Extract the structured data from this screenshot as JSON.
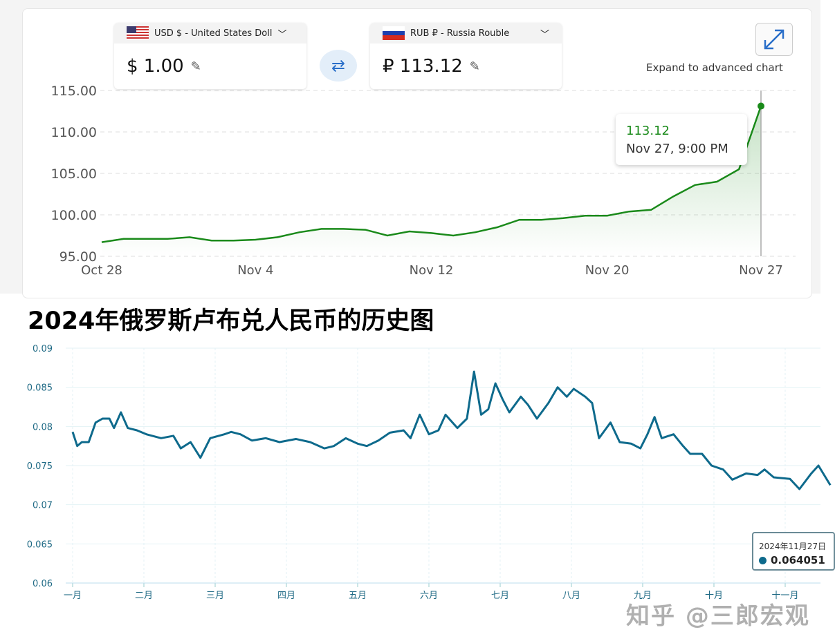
{
  "converter": {
    "from": {
      "label": "USD $ - United States Doll",
      "amount": "$ 1.00",
      "flag": "us-flag"
    },
    "to": {
      "label": "RUB ₽ - Russia Rouble",
      "amount": "₽  113.12",
      "flag": "ru-flag"
    },
    "expand_label": "Expand to advanced chart"
  },
  "colors": {
    "line1": "#1a8a1a",
    "line2": "#0e6a8c",
    "tooltip_value": "#1a8a1a"
  },
  "title2": "2024年俄罗斯卢布兑人民币的历史图",
  "watermark": "知乎 @三郎宏观",
  "chart_data": [
    {
      "type": "area",
      "xlabel": "",
      "ylabel": "",
      "ylim": [
        95,
        115
      ],
      "yticks": [
        "115.00",
        "110.00",
        "105.00",
        "100.00",
        "95.00"
      ],
      "xticks": [
        {
          "label": "Oct 28",
          "date": "Oct 28"
        },
        {
          "label": "Nov 4",
          "date": "Nov 4"
        },
        {
          "label": "Nov 12",
          "date": "Nov 12"
        },
        {
          "label": "Nov 20",
          "date": "Nov 20"
        },
        {
          "label": "Nov 27",
          "date": "Nov 27"
        }
      ],
      "x": [
        "Oct 28",
        "Oct 29",
        "Oct 30",
        "Oct 31",
        "Nov 1",
        "Nov 2",
        "Nov 3",
        "Nov 4",
        "Nov 5",
        "Nov 6",
        "Nov 7",
        "Nov 8",
        "Nov 9",
        "Nov 10",
        "Nov 11",
        "Nov 12",
        "Nov 13",
        "Nov 14",
        "Nov 15",
        "Nov 16",
        "Nov 17",
        "Nov 18",
        "Nov 19",
        "Nov 20",
        "Nov 21",
        "Nov 22",
        "Nov 23",
        "Nov 24",
        "Nov 25",
        "Nov 26",
        "Nov 27"
      ],
      "values": [
        96.7,
        97.1,
        97.1,
        97.1,
        97.3,
        96.9,
        96.9,
        97.0,
        97.3,
        97.9,
        98.3,
        98.3,
        98.2,
        97.5,
        98.0,
        97.8,
        97.5,
        97.9,
        98.5,
        99.4,
        99.4,
        99.6,
        99.9,
        99.9,
        100.4,
        100.6,
        102.2,
        103.6,
        104.0,
        105.5,
        113.12
      ],
      "tooltip": {
        "value": "113.12",
        "date": "Nov 27, 9:00 PM"
      },
      "grid": true
    },
    {
      "type": "line",
      "xlabel": "",
      "ylabel": "",
      "ylim": [
        0.06,
        0.09
      ],
      "yticks": [
        "0.09",
        "0.085",
        "0.08",
        "0.075",
        "0.07",
        "0.065",
        "0.06"
      ],
      "xticks": [
        "一月",
        "二月",
        "三月",
        "四月",
        "五月",
        "六月",
        "七月",
        "八月",
        "九月",
        "十月",
        "十一月"
      ],
      "points": [
        [
          "2024-01-01",
          0.0793
        ],
        [
          "2024-01-03",
          0.0775
        ],
        [
          "2024-01-05",
          0.078
        ],
        [
          "2024-01-08",
          0.078
        ],
        [
          "2024-01-11",
          0.0805
        ],
        [
          "2024-01-14",
          0.081
        ],
        [
          "2024-01-17",
          0.081
        ],
        [
          "2024-01-19",
          0.0798
        ],
        [
          "2024-01-22",
          0.0818
        ],
        [
          "2024-01-25",
          0.0798
        ],
        [
          "2024-01-29",
          0.0795
        ],
        [
          "2024-02-02",
          0.079
        ],
        [
          "2024-02-08",
          0.0785
        ],
        [
          "2024-02-13",
          0.0788
        ],
        [
          "2024-02-16",
          0.0772
        ],
        [
          "2024-02-20",
          0.078
        ],
        [
          "2024-02-24",
          0.076
        ],
        [
          "2024-02-28",
          0.0785
        ],
        [
          "2024-03-05",
          0.079
        ],
        [
          "2024-03-08",
          0.0793
        ],
        [
          "2024-03-12",
          0.079
        ],
        [
          "2024-03-17",
          0.0782
        ],
        [
          "2024-03-23",
          0.0785
        ],
        [
          "2024-03-29",
          0.078
        ],
        [
          "2024-04-05",
          0.0784
        ],
        [
          "2024-04-11",
          0.078
        ],
        [
          "2024-04-17",
          0.0772
        ],
        [
          "2024-04-21",
          0.0775
        ],
        [
          "2024-04-26",
          0.0785
        ],
        [
          "2024-05-01",
          0.0778
        ],
        [
          "2024-05-05",
          0.0775
        ],
        [
          "2024-05-10",
          0.0782
        ],
        [
          "2024-05-15",
          0.0792
        ],
        [
          "2024-05-21",
          0.0795
        ],
        [
          "2024-05-24",
          0.0785
        ],
        [
          "2024-05-28",
          0.0815
        ],
        [
          "2024-06-01",
          0.079
        ],
        [
          "2024-06-05",
          0.0795
        ],
        [
          "2024-06-08",
          0.0815
        ],
        [
          "2024-06-13",
          0.0798
        ],
        [
          "2024-06-17",
          0.081
        ],
        [
          "2024-06-20",
          0.087
        ],
        [
          "2024-06-23",
          0.0815
        ],
        [
          "2024-06-26",
          0.0822
        ],
        [
          "2024-06-29",
          0.0855
        ],
        [
          "2024-07-02",
          0.0835
        ],
        [
          "2024-07-05",
          0.0818
        ],
        [
          "2024-07-10",
          0.0838
        ],
        [
          "2024-07-13",
          0.0828
        ],
        [
          "2024-07-17",
          0.081
        ],
        [
          "2024-07-22",
          0.083
        ],
        [
          "2024-07-26",
          0.085
        ],
        [
          "2024-07-30",
          0.0838
        ],
        [
          "2024-08-02",
          0.0848
        ],
        [
          "2024-08-07",
          0.0838
        ],
        [
          "2024-08-10",
          0.083
        ],
        [
          "2024-08-13",
          0.0785
        ],
        [
          "2024-08-18",
          0.0805
        ],
        [
          "2024-08-22",
          0.078
        ],
        [
          "2024-08-27",
          0.0778
        ],
        [
          "2024-08-31",
          0.0772
        ],
        [
          "2024-09-03",
          0.079
        ],
        [
          "2024-09-06",
          0.0812
        ],
        [
          "2024-09-09",
          0.0785
        ],
        [
          "2024-09-14",
          0.079
        ],
        [
          "2024-09-18",
          0.0775
        ],
        [
          "2024-09-21",
          0.0765
        ],
        [
          "2024-09-26",
          0.0765
        ],
        [
          "2024-09-30",
          0.075
        ],
        [
          "2024-10-05",
          0.0745
        ],
        [
          "2024-10-09",
          0.0732
        ],
        [
          "2024-10-15",
          0.074
        ],
        [
          "2024-10-20",
          0.0738
        ],
        [
          "2024-10-23",
          0.0745
        ],
        [
          "2024-10-27",
          0.0735
        ],
        [
          "2024-11-03",
          0.0733
        ],
        [
          "2024-11-07",
          0.072
        ],
        [
          "2024-11-12",
          0.074
        ],
        [
          "2024-11-15",
          0.075
        ],
        [
          "2024-11-18",
          0.0735
        ],
        [
          "2024-11-20",
          0.0725
        ]
      ],
      "tooltip": {
        "date": "2024年11月27日",
        "value": "0.064051"
      },
      "grid": true
    }
  ]
}
